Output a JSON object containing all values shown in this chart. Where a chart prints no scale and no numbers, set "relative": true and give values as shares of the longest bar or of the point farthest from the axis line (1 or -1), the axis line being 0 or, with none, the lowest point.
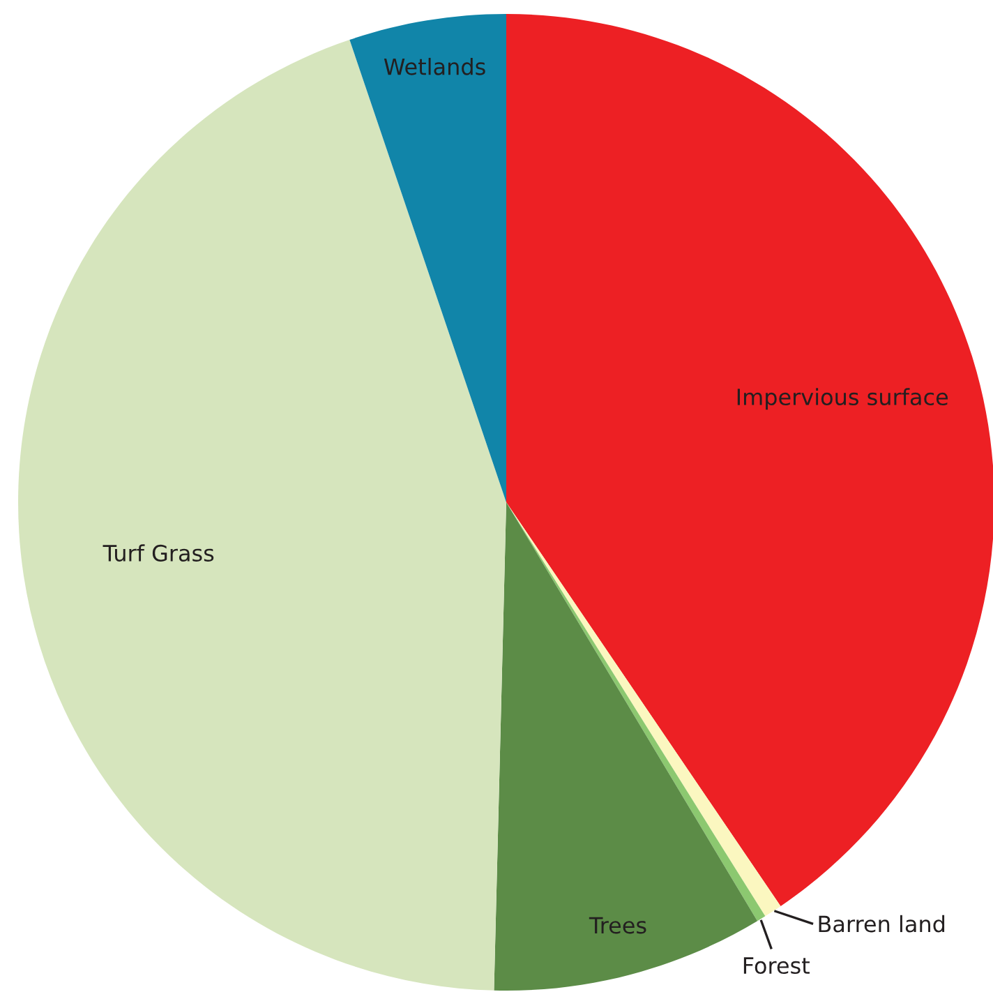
{
  "chart_data": {
    "type": "pie",
    "relative": true,
    "categories": [
      "Impervious surface",
      "Barren land",
      "Forest",
      "Trees",
      "Turf Grass",
      "Wetlands"
    ],
    "values": [
      40.5,
      0.6,
      0.3,
      9.0,
      44.4,
      5.2
    ],
    "colors": [
      "#ed2024",
      "#fbf7c0",
      "#8cc870",
      "#5c8c47",
      "#d6e5bd",
      "#1185a9"
    ],
    "legend": false
  }
}
